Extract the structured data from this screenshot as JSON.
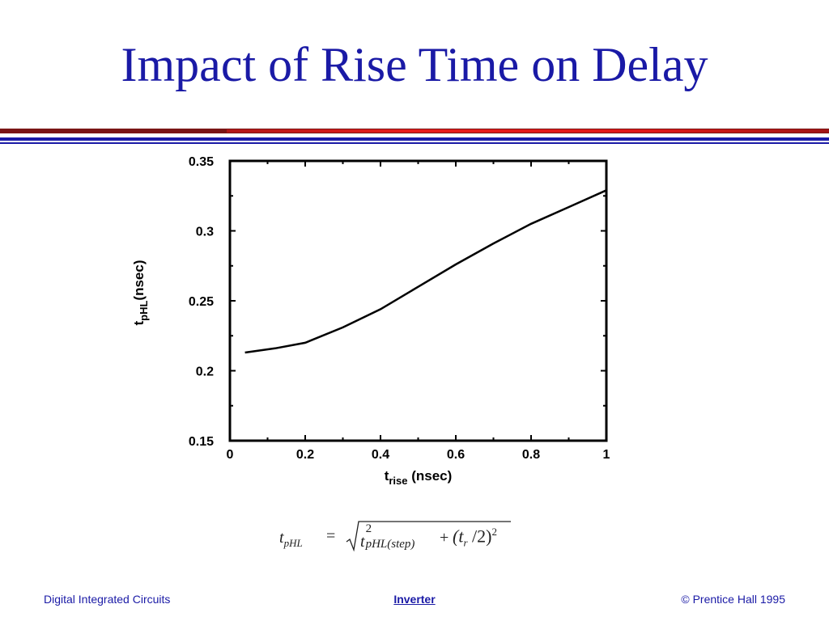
{
  "slide": {
    "title": "Impact of Rise Time on Delay"
  },
  "chart_data": {
    "type": "line",
    "title": "",
    "xlabel_main": "t",
    "xlabel_sub": "rise",
    "xlabel_suffix": " (nsec)",
    "ylabel_main": "t",
    "ylabel_sub": "pHL",
    "ylabel_suffix": "(nsec)",
    "xlim": [
      0,
      1
    ],
    "ylim": [
      0.15,
      0.35
    ],
    "x_ticks": [
      0,
      0.2,
      0.4,
      0.6,
      0.8,
      1
    ],
    "x_tick_labels": [
      "0",
      "0.2",
      "0.4",
      "0.6",
      "0.8",
      "1"
    ],
    "y_ticks": [
      0.15,
      0.2,
      0.25,
      0.3,
      0.35
    ],
    "y_tick_labels": [
      "0.15",
      "0.2",
      "0.25",
      "0.3",
      "0.35"
    ],
    "grid": false,
    "series": [
      {
        "x": [
          0.04,
          0.12,
          0.2,
          0.3,
          0.4,
          0.5,
          0.6,
          0.7,
          0.8,
          0.9,
          1.0
        ],
        "y": [
          0.213,
          0.216,
          0.22,
          0.231,
          0.244,
          0.26,
          0.276,
          0.291,
          0.305,
          0.317,
          0.329
        ]
      }
    ],
    "color": "#000000"
  },
  "formula": {
    "lhs": "t",
    "lhs_sub": "pHL",
    "equals": "=",
    "term1": "t",
    "term1_sup": "2",
    "term1_sub": "pHL(step)",
    "plus": "+",
    "term2": "(t",
    "term2_sub": "r",
    "term2_rest": " /2)",
    "term2_sup": "2"
  },
  "footer": {
    "left": "Digital Integrated Circuits",
    "center": "Inverter",
    "right": "© Prentice Hall 1995"
  }
}
